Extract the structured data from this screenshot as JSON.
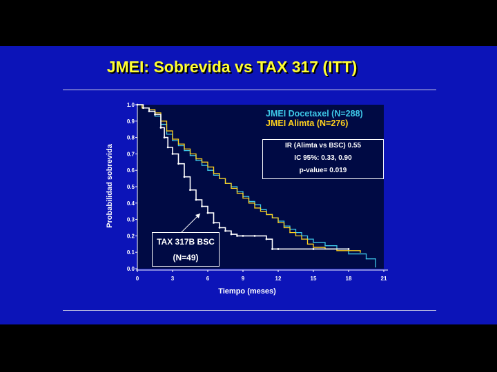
{
  "slide": {
    "title": "JMEI:  Sobrevida vs TAX 317 (ITT)"
  },
  "legend": {
    "docetaxel": "JMEI Docetaxel (N=288)",
    "alimta": "JMEI Alimta (N=276)"
  },
  "stats_box": {
    "line1": "IR (Alimta vs BSC)   0.55",
    "line2": "IC 95%: 0.33, 0.90",
    "line3": "p-value= 0.019"
  },
  "bsc_box": {
    "line1": "TAX 317B BSC",
    "line2": "(N=49)"
  },
  "colors": {
    "background": "#0c14b8",
    "plot_area": "#000a44",
    "title": "#ffff33",
    "docetaxel": "#3ec8e8",
    "alimta": "#ffd21e",
    "bsc": "#ffffff"
  },
  "chart_data": {
    "type": "line",
    "step": true,
    "xlabel": "Tiempo (meses)",
    "ylabel": "Probabilidad sobrevida",
    "xlim": [
      0,
      21
    ],
    "ylim": [
      0,
      1.0
    ],
    "xticks": [
      "0",
      "3",
      "6",
      "9",
      "12",
      "15",
      "18",
      "21"
    ],
    "yticks": [
      "0.0",
      "0.1",
      "0.2",
      "0.3",
      "0.4",
      "0.5",
      "0.6",
      "0.7",
      "0.8",
      "0.9",
      "1.0"
    ],
    "series": [
      {
        "name": "JMEI Docetaxel (N=288)",
        "color": "#3ec8e8",
        "points": [
          [
            0,
            1.0
          ],
          [
            0.4,
            0.98
          ],
          [
            1.0,
            0.96
          ],
          [
            1.5,
            0.93
          ],
          [
            2.0,
            0.88
          ],
          [
            2.5,
            0.82
          ],
          [
            3.0,
            0.78
          ],
          [
            3.5,
            0.75
          ],
          [
            4.0,
            0.72
          ],
          [
            4.5,
            0.69
          ],
          [
            5.0,
            0.66
          ],
          [
            5.5,
            0.63
          ],
          [
            6.0,
            0.6
          ],
          [
            6.5,
            0.57
          ],
          [
            7.0,
            0.55
          ],
          [
            7.5,
            0.52
          ],
          [
            8.0,
            0.5
          ],
          [
            8.5,
            0.47
          ],
          [
            9.0,
            0.44
          ],
          [
            9.5,
            0.41
          ],
          [
            10.0,
            0.39
          ],
          [
            10.5,
            0.36
          ],
          [
            11.0,
            0.33
          ],
          [
            11.5,
            0.31
          ],
          [
            12.0,
            0.29
          ],
          [
            12.5,
            0.26
          ],
          [
            13.0,
            0.24
          ],
          [
            13.5,
            0.22
          ],
          [
            14.0,
            0.2
          ],
          [
            14.5,
            0.18
          ],
          [
            15.0,
            0.16
          ],
          [
            16.0,
            0.14
          ],
          [
            17.0,
            0.12
          ],
          [
            18.0,
            0.09
          ],
          [
            19.5,
            0.06
          ],
          [
            20.3,
            0.01
          ]
        ]
      },
      {
        "name": "JMEI Alimta (N=276)",
        "color": "#ffd21e",
        "points": [
          [
            0,
            1.0
          ],
          [
            0.4,
            0.98
          ],
          [
            1.0,
            0.97
          ],
          [
            1.5,
            0.95
          ],
          [
            2.0,
            0.9
          ],
          [
            2.5,
            0.84
          ],
          [
            3.0,
            0.79
          ],
          [
            3.5,
            0.76
          ],
          [
            4.0,
            0.73
          ],
          [
            4.5,
            0.7
          ],
          [
            5.0,
            0.67
          ],
          [
            5.5,
            0.65
          ],
          [
            6.0,
            0.62
          ],
          [
            6.5,
            0.58
          ],
          [
            7.0,
            0.55
          ],
          [
            7.5,
            0.52
          ],
          [
            8.0,
            0.49
          ],
          [
            8.5,
            0.46
          ],
          [
            9.0,
            0.43
          ],
          [
            9.5,
            0.4
          ],
          [
            10.0,
            0.37
          ],
          [
            10.5,
            0.35
          ],
          [
            11.0,
            0.33
          ],
          [
            11.5,
            0.31
          ],
          [
            12.0,
            0.28
          ],
          [
            12.5,
            0.25
          ],
          [
            13.0,
            0.22
          ],
          [
            13.5,
            0.2
          ],
          [
            14.0,
            0.18
          ],
          [
            14.5,
            0.15
          ],
          [
            15.0,
            0.13
          ],
          [
            16.0,
            0.12
          ],
          [
            17.0,
            0.11
          ],
          [
            18.0,
            0.11
          ],
          [
            19.0,
            0.1
          ]
        ]
      },
      {
        "name": "TAX 317B BSC (N=49)",
        "color": "#ffffff",
        "points": [
          [
            0,
            1.0
          ],
          [
            0.5,
            0.98
          ],
          [
            1.0,
            0.96
          ],
          [
            1.5,
            0.94
          ],
          [
            2.0,
            0.86
          ],
          [
            2.3,
            0.8
          ],
          [
            2.6,
            0.74
          ],
          [
            3.0,
            0.7
          ],
          [
            3.5,
            0.64
          ],
          [
            4.0,
            0.56
          ],
          [
            4.5,
            0.48
          ],
          [
            5.0,
            0.42
          ],
          [
            5.5,
            0.38
          ],
          [
            6.0,
            0.34
          ],
          [
            6.5,
            0.28
          ],
          [
            7.0,
            0.25
          ],
          [
            7.5,
            0.23
          ],
          [
            8.0,
            0.21
          ],
          [
            8.5,
            0.2
          ],
          [
            9.0,
            0.2
          ],
          [
            10.0,
            0.2
          ],
          [
            11.0,
            0.18
          ],
          [
            11.5,
            0.12
          ],
          [
            12.0,
            0.12
          ],
          [
            15.0,
            0.12
          ],
          [
            18.0,
            0.12
          ]
        ]
      }
    ],
    "annotations": [
      "TAX 317B BSC",
      "(N=49)"
    ]
  }
}
